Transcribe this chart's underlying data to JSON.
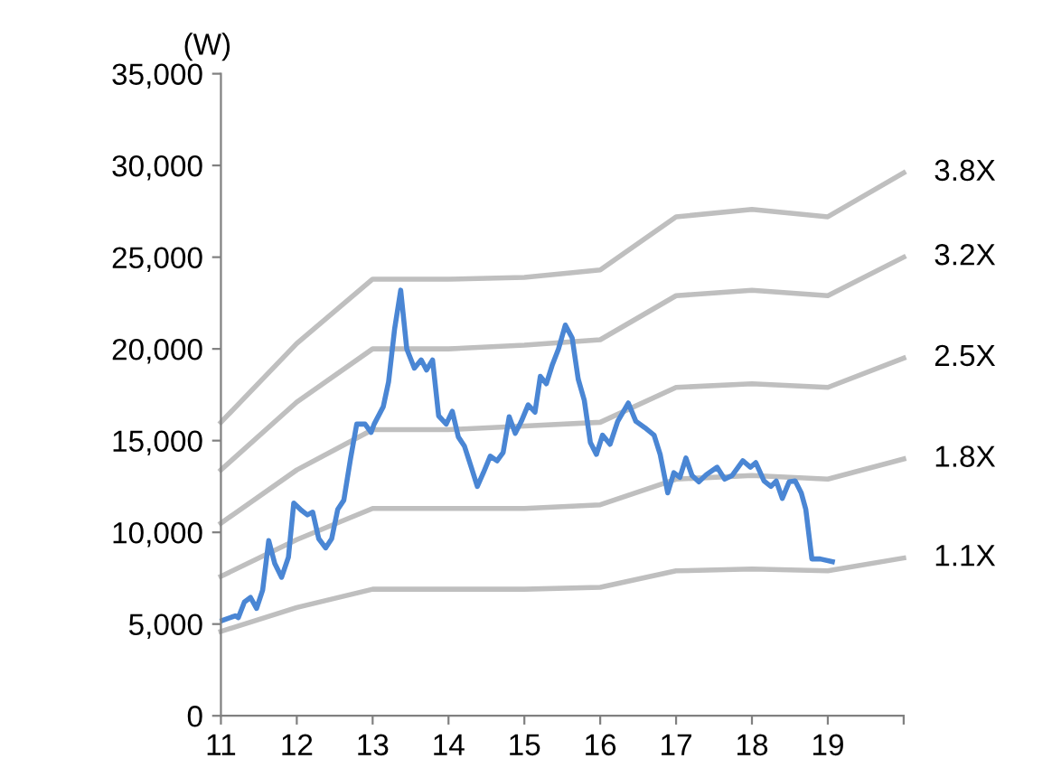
{
  "chart_data": {
    "type": "line",
    "ylabel": "(W)",
    "xlim": [
      11,
      20
    ],
    "xticks": [
      11,
      12,
      13,
      14,
      15,
      16,
      17,
      18,
      19,
      {
        "value": 20,
        "label": null
      }
    ],
    "ylim": [
      0,
      35000
    ],
    "yticks": [
      {
        "value": 0,
        "label": "0"
      },
      {
        "value": 5000,
        "label": "5,000"
      },
      {
        "value": 10000,
        "label": "10,000"
      },
      {
        "value": 15000,
        "label": "15,000"
      },
      {
        "value": 20000,
        "label": "20,000"
      },
      {
        "value": 25000,
        "label": "25,000"
      },
      {
        "value": 30000,
        "label": "30,000"
      },
      {
        "value": 35000,
        "label": "35,000"
      }
    ],
    "grid": false,
    "legend": false,
    "marker": "none",
    "line_style": "solid",
    "series": [
      {
        "name": "3.8X",
        "color": "#bfbfbf",
        "x": [
          11,
          12,
          13,
          14,
          15,
          16,
          17,
          18,
          19,
          20
        ],
        "values": [
          16000,
          20300,
          23800,
          23800,
          23900,
          24300,
          27200,
          27600,
          27200,
          29600
        ]
      },
      {
        "name": "3.2X",
        "color": "#bfbfbf",
        "x": [
          11,
          12,
          13,
          14,
          15,
          16,
          17,
          18,
          19,
          20
        ],
        "values": [
          13400,
          17100,
          20000,
          20000,
          20200,
          20500,
          22900,
          23200,
          22900,
          25000
        ]
      },
      {
        "name": "2.5X",
        "color": "#bfbfbf",
        "x": [
          11,
          12,
          13,
          14,
          15,
          16,
          17,
          18,
          19,
          20
        ],
        "values": [
          10500,
          13400,
          15600,
          15600,
          15800,
          16000,
          17900,
          18100,
          17900,
          19500
        ]
      },
      {
        "name": "1.8X",
        "color": "#bfbfbf",
        "x": [
          11,
          12,
          13,
          14,
          15,
          16,
          17,
          18,
          19,
          20
        ],
        "values": [
          7600,
          9600,
          11300,
          11300,
          11300,
          11500,
          12900,
          13100,
          12900,
          14000
        ]
      },
      {
        "name": "1.1X",
        "color": "#bfbfbf",
        "x": [
          11,
          12,
          13,
          14,
          15,
          16,
          17,
          18,
          19,
          20
        ],
        "values": [
          4600,
          5900,
          6900,
          6900,
          6900,
          7000,
          7900,
          8000,
          7900,
          8600
        ]
      },
      {
        "color": "#4a86d4",
        "x": [
          11.02,
          11.19,
          11.23,
          11.31,
          11.39,
          11.47,
          11.55,
          11.63,
          11.71,
          11.8,
          11.89,
          11.96,
          12.06,
          12.14,
          12.21,
          12.29,
          12.38,
          12.46,
          12.54,
          12.62,
          12.71,
          12.79,
          12.9,
          12.98,
          13.02,
          13.14,
          13.21,
          13.29,
          13.37,
          13.45,
          13.55,
          13.64,
          13.71,
          13.79,
          13.87,
          13.97,
          14.05,
          14.13,
          14.21,
          14.3,
          14.38,
          14.46,
          14.55,
          14.64,
          14.72,
          14.8,
          14.88,
          14.96,
          15.05,
          15.14,
          15.21,
          15.29,
          15.37,
          15.45,
          15.54,
          15.63,
          15.71,
          15.79,
          15.87,
          15.95,
          16.03,
          16.13,
          16.23,
          16.37,
          16.47,
          16.59,
          16.71,
          16.79,
          16.89,
          16.97,
          17.05,
          17.13,
          17.21,
          17.3,
          17.4,
          17.54,
          17.64,
          17.74,
          17.88,
          17.98,
          18.05,
          18.16,
          18.25,
          18.32,
          18.4,
          18.49,
          18.57,
          18.65,
          18.71,
          18.79,
          18.9,
          19.06
        ],
        "values": [
          5200,
          5450,
          5350,
          6200,
          6450,
          5850,
          6850,
          9550,
          8300,
          7550,
          8650,
          11600,
          11200,
          10950,
          11100,
          9650,
          9150,
          9650,
          11250,
          11750,
          14050,
          15900,
          15900,
          15450,
          15900,
          16850,
          18200,
          21100,
          23200,
          20000,
          18950,
          19400,
          18850,
          19400,
          16350,
          15900,
          16600,
          15200,
          14700,
          13550,
          12500,
          13250,
          14150,
          13900,
          14350,
          16300,
          15400,
          16050,
          16950,
          16550,
          18500,
          18100,
          19150,
          20000,
          21300,
          20600,
          18350,
          17200,
          14900,
          14250,
          15300,
          14800,
          16050,
          17050,
          16050,
          15700,
          15300,
          14250,
          12150,
          13250,
          13000,
          14050,
          13100,
          12750,
          13150,
          13550,
          12900,
          13100,
          13900,
          13550,
          13800,
          12800,
          12500,
          12800,
          11850,
          12750,
          12800,
          12150,
          11250,
          8550,
          8550,
          8400
        ]
      }
    ]
  }
}
